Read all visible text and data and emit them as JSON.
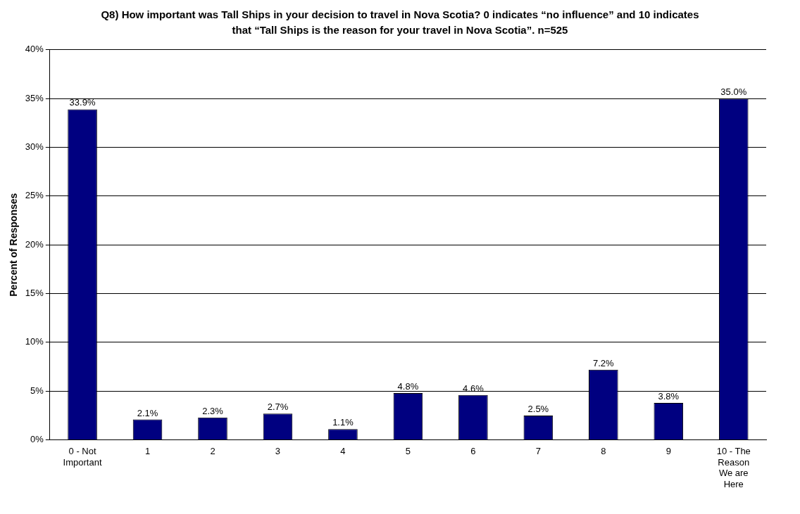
{
  "chart_data": {
    "type": "bar",
    "title": "Q8) How important was Tall Ships in your decision to travel in Nova Scotia? 0 indicates “no influence” and 10 indicates that “Tall Ships is the reason for your travel in Nova Scotia”. n=525",
    "ylabel": "Percent of Responses",
    "categories": [
      "0 - Not Important",
      "1",
      "2",
      "3",
      "4",
      "5",
      "6",
      "7",
      "8",
      "9",
      "10 - The Reason We are Here"
    ],
    "values": [
      33.9,
      2.1,
      2.3,
      2.7,
      1.1,
      4.8,
      4.6,
      2.5,
      7.2,
      3.8,
      35.0
    ],
    "value_labels": [
      "33.9%",
      "2.1%",
      "2.3%",
      "2.7%",
      "1.1%",
      "4.8%",
      "4.6%",
      "2.5%",
      "7.2%",
      "3.8%",
      "35.0%"
    ],
    "color": "#000080",
    "ylim": [
      0,
      40
    ],
    "yticks": [
      {
        "value": 0,
        "label": "0%"
      },
      {
        "value": 5,
        "label": "5%"
      },
      {
        "value": 10,
        "label": "10%"
      },
      {
        "value": 15,
        "label": "15%"
      },
      {
        "value": 20,
        "label": "20%"
      },
      {
        "value": 25,
        "label": "25%"
      },
      {
        "value": 30,
        "label": "30%"
      },
      {
        "value": 35,
        "label": "35%"
      },
      {
        "value": 40,
        "label": "40%"
      }
    ],
    "grid": "y",
    "legend": false
  }
}
